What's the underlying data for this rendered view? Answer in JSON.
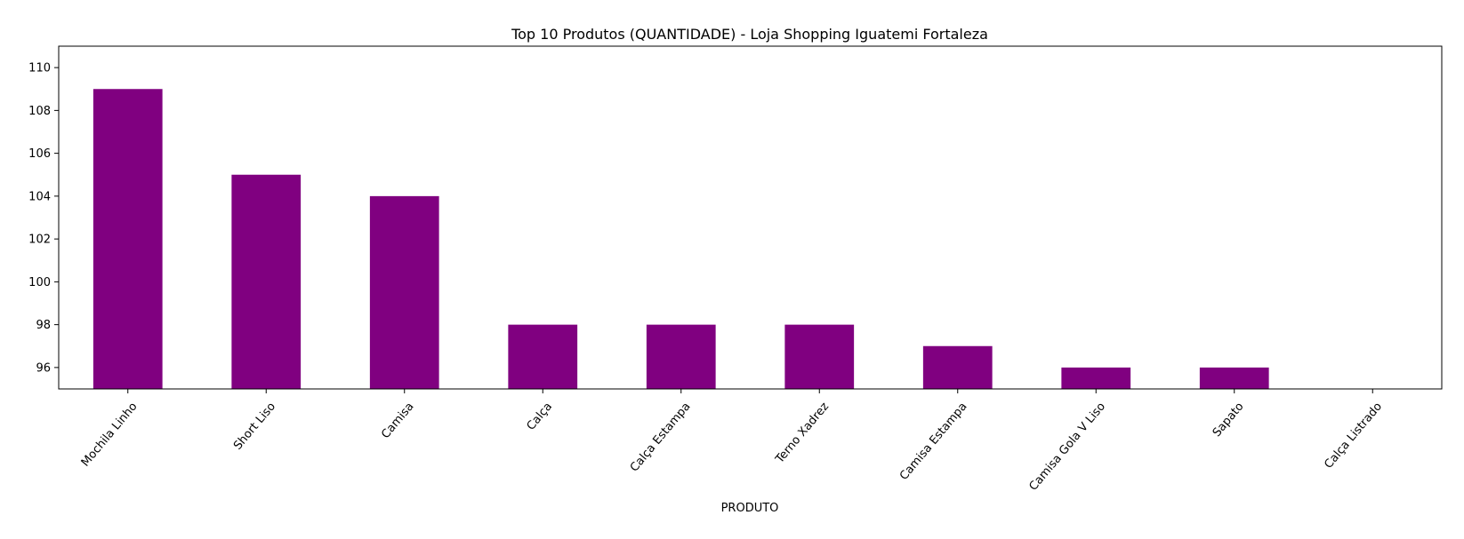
{
  "chart_data": {
    "type": "bar",
    "title": "Top 10 Produtos (QUANTIDADE) - Loja Shopping Iguatemi Fortaleza",
    "xlabel": "PRODUTO",
    "ylabel": "",
    "categories": [
      "Mochila Linho",
      "Short Liso",
      "Camisa",
      "Calça",
      "Calça Estampa",
      "Terno Xadrez",
      "Camisa Estampa",
      "Camisa Gola V Liso",
      "Sapato",
      "Calça Listrado"
    ],
    "values": [
      109,
      105,
      104,
      98,
      98,
      98,
      97,
      96,
      96,
      95
    ],
    "ylim": [
      95,
      111
    ],
    "yticks": [
      96,
      98,
      100,
      102,
      104,
      106,
      108,
      110
    ],
    "grid": false,
    "bar_color": "#800080"
  }
}
